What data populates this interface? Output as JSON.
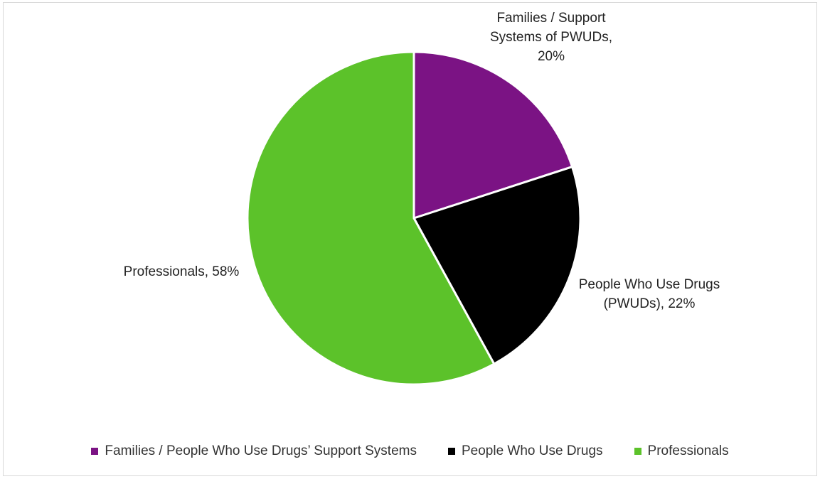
{
  "chart_data": {
    "type": "pie",
    "title": "",
    "categories": [
      "Families / People Who Use Drugs’ Support Systems",
      "People Who Use Drugs",
      "Professionals"
    ],
    "values": [
      20,
      22,
      58
    ],
    "unit": "%",
    "colors": [
      "#7B1384",
      "#000000",
      "#5CC22A"
    ],
    "slice_labels": [
      [
        "Families / Support",
        "Systems of PWUDs,",
        "20%"
      ],
      [
        "People Who Use Drugs",
        "(PWUDs), 22%"
      ],
      [
        "Professionals, 58%"
      ]
    ],
    "legend_position": "bottom"
  },
  "legend": {
    "items": [
      {
        "label": "Families / People Who Use Drugs’ Support Systems",
        "color": "#7B1384"
      },
      {
        "label": "People Who Use Drugs",
        "color": "#000000"
      },
      {
        "label": "Professionals",
        "color": "#5CC22A"
      }
    ]
  }
}
